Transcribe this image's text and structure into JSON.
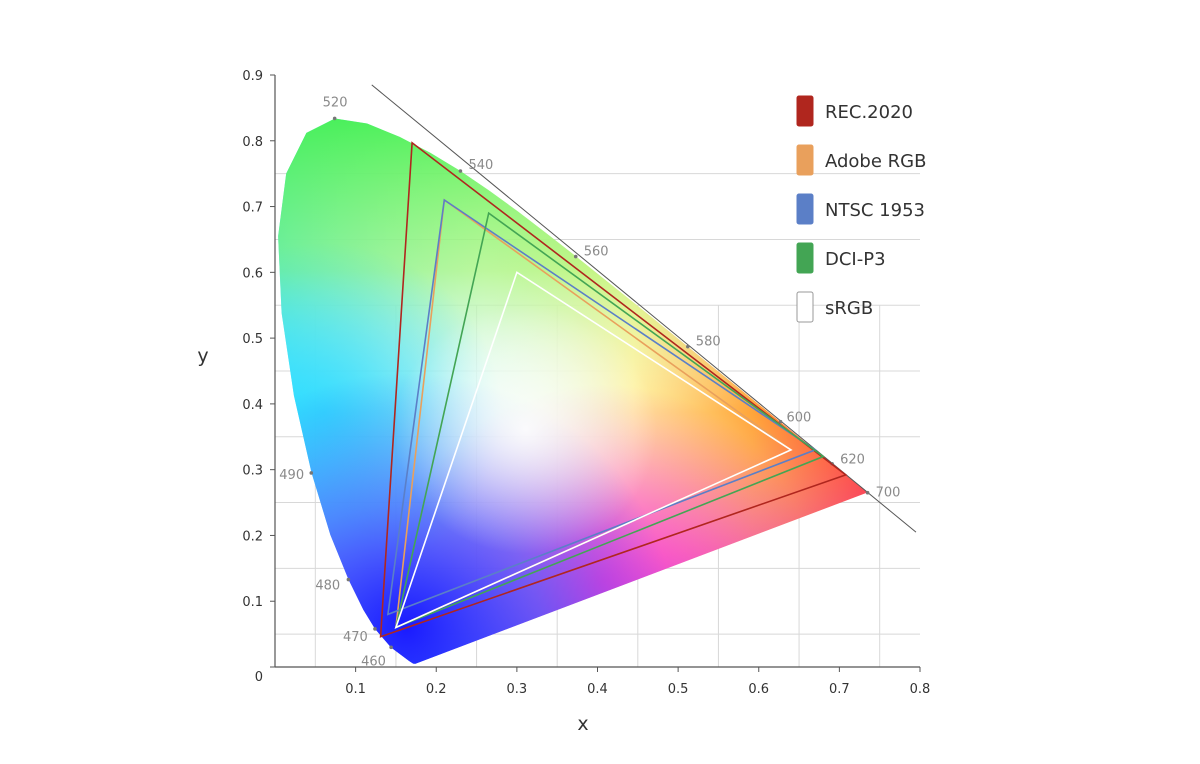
{
  "chart_data": {
    "type": "scatter",
    "title": "",
    "xlabel": "x",
    "ylabel": "y",
    "xlim": [
      0,
      0.8
    ],
    "ylim": [
      0,
      0.9
    ],
    "x_ticks": [
      "0.1",
      "0.2",
      "0.3",
      "0.4",
      "0.5",
      "0.6",
      "0.7",
      "0.8"
    ],
    "y_ticks": [
      "0",
      "0.1",
      "0.2",
      "0.3",
      "0.4",
      "0.5",
      "0.6",
      "0.7",
      "0.8",
      "0.9"
    ],
    "grid": true,
    "spectral_locus_labels": [
      {
        "nm": "460",
        "x": 0.144,
        "y": 0.03
      },
      {
        "nm": "470",
        "x": 0.124,
        "y": 0.058
      },
      {
        "nm": "480",
        "x": 0.091,
        "y": 0.133
      },
      {
        "nm": "490",
        "x": 0.045,
        "y": 0.295
      },
      {
        "nm": "520",
        "x": 0.074,
        "y": 0.834
      },
      {
        "nm": "540",
        "x": 0.23,
        "y": 0.754
      },
      {
        "nm": "560",
        "x": 0.373,
        "y": 0.624
      },
      {
        "nm": "580",
        "x": 0.512,
        "y": 0.487
      },
      {
        "nm": "600",
        "x": 0.627,
        "y": 0.373
      },
      {
        "nm": "620",
        "x": 0.691,
        "y": 0.309
      },
      {
        "nm": "700",
        "x": 0.735,
        "y": 0.265
      }
    ],
    "series": [
      {
        "name": "REC.2020",
        "color": "#b0261e",
        "primaries": [
          [
            0.708,
            0.292
          ],
          [
            0.17,
            0.797
          ],
          [
            0.131,
            0.046
          ]
        ]
      },
      {
        "name": "Adobe RGB",
        "color": "#e9a05c",
        "primaries": [
          [
            0.64,
            0.33
          ],
          [
            0.21,
            0.71
          ],
          [
            0.15,
            0.06
          ]
        ]
      },
      {
        "name": "NTSC 1953",
        "color": "#5b7fc7",
        "primaries": [
          [
            0.67,
            0.33
          ],
          [
            0.21,
            0.71
          ],
          [
            0.14,
            0.08
          ]
        ]
      },
      {
        "name": "DCI-P3",
        "color": "#43a554",
        "primaries": [
          [
            0.68,
            0.32
          ],
          [
            0.265,
            0.69
          ],
          [
            0.15,
            0.06
          ]
        ]
      },
      {
        "name": "sRGB",
        "color": "#ffffff",
        "primaries": [
          [
            0.64,
            0.33
          ],
          [
            0.3,
            0.6
          ],
          [
            0.15,
            0.06
          ]
        ]
      }
    ],
    "legend": "top-right"
  }
}
